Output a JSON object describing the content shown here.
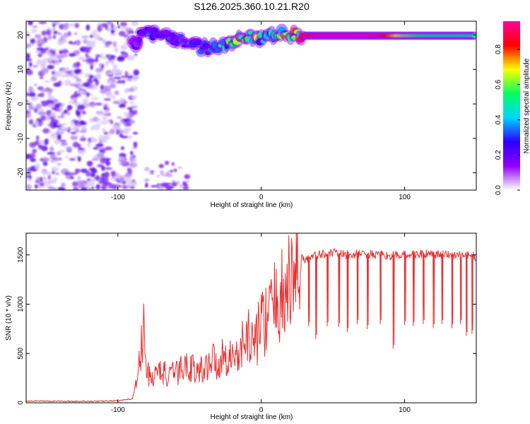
{
  "page": {
    "title": "S126.2025.360.10.21.R20"
  },
  "chart_data": [
    {
      "type": "heatmap",
      "title": "S126.2025.360.10.21.R20",
      "xlabel": "Height of straight line (km)",
      "ylabel": "Frequency (Hz)",
      "xlim": [
        -164,
        150
      ],
      "ylim": [
        -25,
        24
      ],
      "xticks": [
        -100,
        0,
        100
      ],
      "yticks": [
        -20,
        -10,
        0,
        10,
        20
      ],
      "xtick_labels": [
        "-100",
        "0",
        "100"
      ],
      "ytick_labels": [
        "-20",
        "-10",
        "0",
        "10",
        "20"
      ],
      "colorbar": {
        "label": "Normalized spectral amplitude",
        "range": [
          0,
          0.96
        ],
        "ticks": [
          0,
          0.2,
          0.4,
          0.6,
          0.8
        ],
        "tick_labels": [
          "0.0",
          "0.2",
          "0.4",
          "0.6",
          "0.8"
        ],
        "colors": [
          "#ffffff",
          "#8f00ff",
          "#2a00ff",
          "#00d5ff",
          "#00ff60",
          "#ffff00",
          "#ff0000",
          "#ff00a0"
        ]
      },
      "ridge": {
        "description": "narrowband Doppler line near 20 Hz, noisy below ~ -85 km, steady above ~ 30 km",
        "x": [
          -90,
          -80,
          -70,
          -60,
          -50,
          -40,
          -30,
          -20,
          -10,
          0,
          10,
          20,
          30,
          40,
          60,
          80,
          100,
          120,
          150
        ],
        "frequency_hz": [
          17,
          21,
          20,
          19,
          18,
          16,
          17,
          18,
          20,
          19,
          20,
          20,
          19.8,
          19.8,
          19.8,
          19.8,
          19.8,
          19.8,
          19.8
        ],
        "amplitude": [
          0.2,
          0.3,
          0.3,
          0.3,
          0.3,
          0.3,
          0.4,
          0.6,
          0.8,
          0.5,
          0.5,
          0.7,
          0.85,
          0.95,
          0.95,
          0.95,
          0.6,
          0.5,
          0.5
        ]
      },
      "noise_region_x": [
        -164,
        -95
      ]
    },
    {
      "type": "line",
      "xlabel": "Height of straight line (km)",
      "ylabel": "SNR (10 * v/v)",
      "xlim": [
        -164,
        150
      ],
      "ylim": [
        0,
        1720
      ],
      "xticks": [
        -100,
        0,
        100
      ],
      "yticks": [
        0,
        500,
        1000,
        1500
      ],
      "xtick_labels": [
        "-100",
        "0",
        "100"
      ],
      "ytick_labels": [
        "0",
        "500",
        "1000",
        "1500"
      ],
      "color": "#e83030",
      "series": [
        {
          "name": "SNR",
          "x": [
            -164,
            -140,
            -120,
            -100,
            -90,
            -87,
            -84,
            -82,
            -80,
            -75,
            -70,
            -65,
            -60,
            -55,
            -50,
            -45,
            -40,
            -35,
            -30,
            -25,
            -20,
            -15,
            -10,
            -5,
            0,
            5,
            10,
            15,
            20,
            25,
            28,
            30,
            35,
            40,
            50,
            60,
            70,
            80,
            90,
            100,
            110,
            120,
            130,
            140,
            150
          ],
          "y": [
            20,
            15,
            15,
            20,
            40,
            200,
            500,
            750,
            300,
            250,
            350,
            250,
            300,
            350,
            400,
            300,
            350,
            450,
            400,
            500,
            450,
            500,
            700,
            600,
            800,
            900,
            1000,
            1100,
            1200,
            1350,
            1500,
            1450,
            1480,
            1500,
            1520,
            1500,
            1510,
            1500,
            1490,
            1500,
            1510,
            1500,
            1500,
            1500,
            1480
          ]
        }
      ],
      "dips_x": [
        33,
        38,
        46,
        54,
        60,
        67,
        74,
        83,
        92,
        100,
        106,
        113,
        120,
        126,
        133,
        139,
        143,
        147
      ],
      "dips_y": [
        780,
        650,
        780,
        770,
        720,
        800,
        750,
        800,
        550,
        790,
        780,
        800,
        760,
        800,
        760,
        800,
        680,
        700
      ]
    }
  ]
}
